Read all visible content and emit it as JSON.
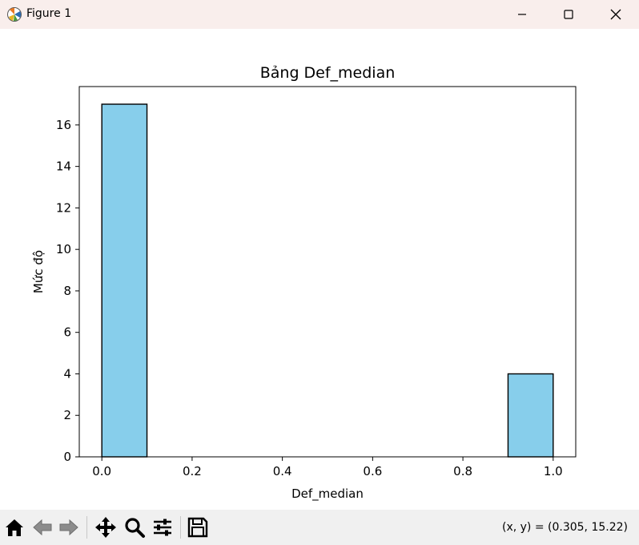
{
  "window": {
    "title": "Figure 1",
    "icons": [
      "matplotlib-logo-icon",
      "minimize-icon",
      "maximize-icon",
      "close-icon"
    ]
  },
  "toolbar": {
    "icons": [
      "home-icon",
      "back-icon",
      "forward-icon",
      "pan-icon",
      "zoom-icon",
      "configure-subplots-icon",
      "save-icon"
    ],
    "coords": "(x, y) = (0.305, 15.22)"
  },
  "colors": {
    "bar_fill": "#87ceeb",
    "bar_edge": "#000000",
    "titlebar_bg": "#f9eeec",
    "toolbar_bg": "#f0f0f0"
  },
  "chart_data": {
    "type": "bar",
    "title": "Bảng Def_median",
    "xlabel": "Def_median",
    "ylabel": "Mức độ",
    "xlim": [
      -0.05,
      1.05
    ],
    "ylim": [
      0,
      17.85
    ],
    "xticks": [
      "0.0",
      "0.2",
      "0.4",
      "0.6",
      "0.8",
      "1.0"
    ],
    "yticks": [
      "0",
      "2",
      "4",
      "6",
      "8",
      "10",
      "12",
      "14",
      "16"
    ],
    "bins": [
      0.0,
      0.1,
      0.2,
      0.3,
      0.4,
      0.5,
      0.6,
      0.7,
      0.8,
      0.9,
      1.0
    ],
    "counts": [
      17,
      0,
      0,
      0,
      0,
      0,
      0,
      0,
      0,
      4
    ],
    "grid": false,
    "legend": "none"
  }
}
